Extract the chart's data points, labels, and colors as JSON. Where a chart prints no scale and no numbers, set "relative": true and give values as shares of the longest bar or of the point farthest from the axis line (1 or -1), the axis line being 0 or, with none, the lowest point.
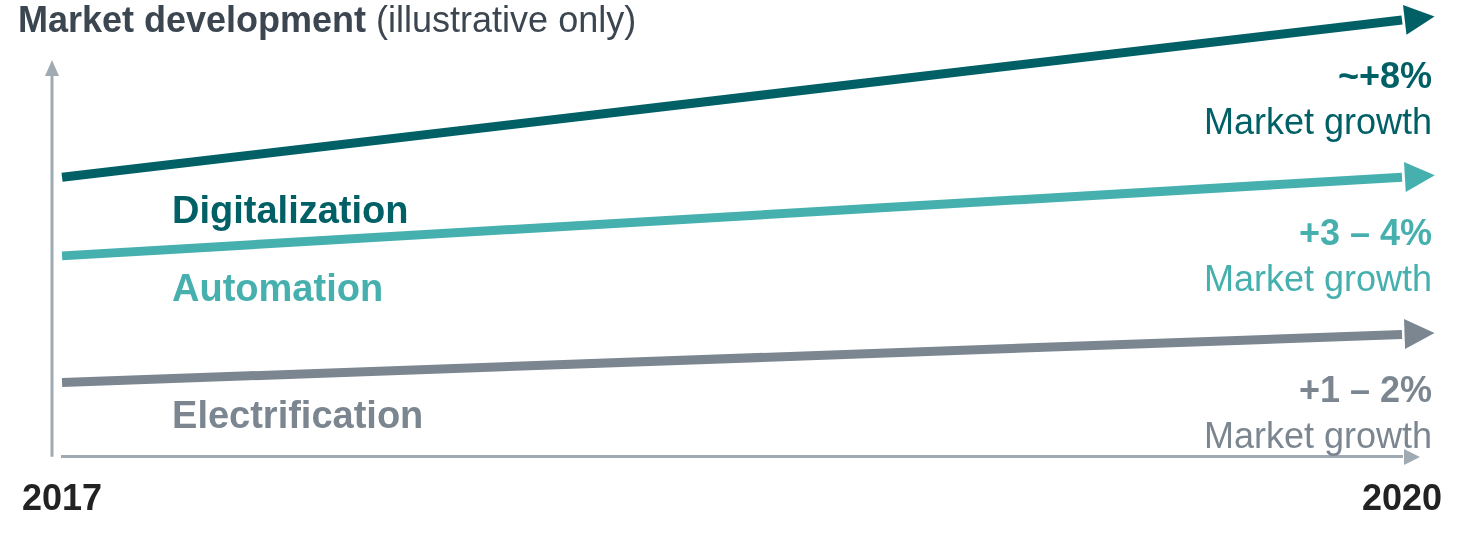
{
  "chart_data": {
    "type": "line",
    "title": "Market development",
    "subtitle": "(illustrative only)",
    "relative": true,
    "categories": [
      "2017",
      "2020"
    ],
    "legend": false,
    "series": [
      {
        "name": "Digitalization",
        "color": "#006066",
        "values": [
          0.64,
          1
        ]
      },
      {
        "name": "Automation",
        "color": "#46b0ae",
        "values": [
          0.46,
          0.64
        ]
      },
      {
        "name": "Electrification",
        "color": "#7b8690",
        "values": [
          0.17,
          0.28
        ]
      }
    ],
    "annotations": [
      {
        "text": "~+8%",
        "x": "2020",
        "y": 1
      },
      {
        "text": "Market growth",
        "x": "2020",
        "y": 1
      },
      {
        "text": "+3 – 4%",
        "x": "2020",
        "y": 0.64
      },
      {
        "text": "Market growth",
        "x": "2020",
        "y": 0.64
      },
      {
        "text": "+1 – 2%",
        "x": "2020",
        "y": 0.28
      },
      {
        "text": "Market growth",
        "x": "2020",
        "y": 0.28
      }
    ]
  }
}
